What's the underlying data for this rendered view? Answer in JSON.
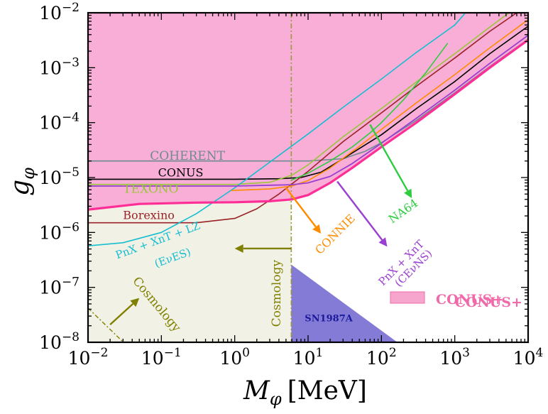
{
  "chart_data": {
    "type": "line",
    "title": "",
    "xlabel": "M",
    "xlabel_sub": "φ",
    "xlabel_unit": "[MeV]",
    "ylabel": "g",
    "ylabel_sub": "φ",
    "x_scale": "log",
    "y_scale": "log",
    "xlim": [
      0.01,
      10000
    ],
    "ylim": [
      1e-08,
      0.01
    ],
    "x_ticks": [
      {
        "value": 0.01,
        "base": "10",
        "exp": "−2"
      },
      {
        "value": 0.1,
        "base": "10",
        "exp": "−1"
      },
      {
        "value": 1,
        "base": "10",
        "exp": "0"
      },
      {
        "value": 10,
        "base": "10",
        "exp": "1"
      },
      {
        "value": 100,
        "base": "10",
        "exp": "2"
      },
      {
        "value": 1000,
        "base": "10",
        "exp": "3"
      },
      {
        "value": 10000,
        "base": "10",
        "exp": "4"
      }
    ],
    "y_ticks": [
      {
        "value": 1e-08,
        "base": "10",
        "exp": "−8"
      },
      {
        "value": 1e-07,
        "base": "10",
        "exp": "−7"
      },
      {
        "value": 1e-06,
        "base": "10",
        "exp": "−6"
      },
      {
        "value": 1e-05,
        "base": "10",
        "exp": "−5"
      },
      {
        "value": 0.0001,
        "base": "10",
        "exp": "−4"
      },
      {
        "value": 0.001,
        "base": "10",
        "exp": "−3"
      },
      {
        "value": 0.01,
        "base": "10",
        "exp": "−2"
      }
    ],
    "cosmology_boundary_mass": 5.9,
    "regions": [
      {
        "name": "CONUS+ excluded",
        "color": "#f04ca5",
        "opacity": 0.45,
        "boundary": [
          [
            0.01,
            2.6e-06
          ],
          [
            0.05,
            3.3e-06
          ],
          [
            0.3,
            3.5e-06
          ],
          [
            1,
            3.55e-06
          ],
          [
            3,
            3.7e-06
          ],
          [
            6,
            4e-06
          ],
          [
            10,
            4.8e-06
          ],
          [
            20,
            8e-06
          ],
          [
            40,
            1.5e-05
          ],
          [
            100,
            3.6e-05
          ],
          [
            300,
            0.0001
          ],
          [
            1000,
            0.00033
          ],
          [
            3000,
            0.001
          ],
          [
            10000,
            0.0032
          ]
        ]
      },
      {
        "name": "Cosmology",
        "color": "#c8c89a",
        "opacity": 0.25,
        "x_range": [
          0.01,
          5.9
        ]
      },
      {
        "name": "SN1987A",
        "color": "#5b4fc9",
        "opacity": 0.75,
        "polygon": [
          [
            5.9,
            2.6e-07
          ],
          [
            5.9,
            1e-08
          ],
          [
            165,
            1e-08
          ]
        ]
      }
    ],
    "series": [
      {
        "name": "COHERENT",
        "color": "#6e8b8f",
        "width": 1.6,
        "points": [
          [
            0.01,
            2e-05
          ],
          [
            1,
            2e-05
          ],
          [
            10,
            2e-05
          ],
          [
            30,
            2.2e-05
          ],
          [
            60,
            3e-05
          ],
          [
            100,
            4.3e-05
          ],
          [
            300,
            0.00011
          ],
          [
            1000,
            0.00035
          ],
          [
            3000,
            0.00105
          ],
          [
            10000,
            0.0033
          ]
        ]
      },
      {
        "name": "CONUS",
        "color": "#000000",
        "width": 1.6,
        "points": [
          [
            0.01,
            9.3e-06
          ],
          [
            1,
            9.3e-06
          ],
          [
            4,
            9.5e-06
          ],
          [
            8,
            1e-05
          ],
          [
            15,
            1.25e-05
          ],
          [
            30,
            2.2e-05
          ],
          [
            100,
            6e-05
          ],
          [
            300,
            0.00018
          ],
          [
            1000,
            0.00056
          ],
          [
            3000,
            0.0018
          ],
          [
            10000,
            0.0057
          ]
        ]
      },
      {
        "name": "TEXONO",
        "color": "#9bc53d",
        "width": 1.6,
        "points": [
          [
            0.01,
            7.5e-06
          ],
          [
            1,
            7.5e-06
          ],
          [
            3,
            8.2e-06
          ],
          [
            6,
            1.1e-05
          ],
          [
            10,
            1.7e-05
          ],
          [
            30,
            5.5e-05
          ],
          [
            100,
            0.00018
          ],
          [
            300,
            0.00055
          ],
          [
            1000,
            0.0018
          ],
          [
            3000,
            0.0055
          ],
          [
            5500,
            0.01
          ]
        ]
      },
      {
        "name": "Borexino",
        "color": "#9b2226",
        "width": 1.6,
        "points": [
          [
            0.01,
            1.5e-06
          ],
          [
            0.3,
            1.5e-06
          ],
          [
            1,
            1.8e-06
          ],
          [
            2,
            2.7e-06
          ],
          [
            4,
            5e-06
          ],
          [
            10,
            1.3e-05
          ],
          [
            30,
            4.5e-05
          ],
          [
            100,
            0.00015
          ],
          [
            300,
            0.00046
          ],
          [
            1000,
            0.0015
          ],
          [
            3000,
            0.0046
          ],
          [
            7000,
            0.01
          ]
        ]
      },
      {
        "name": "PnX + XnT + LZ (EνES)",
        "color": "#17becf",
        "width": 1.6,
        "points": [
          [
            0.01,
            5.7e-07
          ],
          [
            0.03,
            6.5e-07
          ],
          [
            0.1,
            1e-06
          ],
          [
            0.3,
            2.2e-06
          ],
          [
            1,
            6.5e-06
          ],
          [
            3,
            1.9e-05
          ],
          [
            10,
            6.2e-05
          ],
          [
            30,
            0.00019
          ],
          [
            100,
            0.00062
          ],
          [
            300,
            0.0019
          ],
          [
            1000,
            0.006
          ],
          [
            1400,
            0.01
          ]
        ]
      },
      {
        "name": "CONNIE",
        "color": "#ff8c00",
        "width": 1.6,
        "points": [
          [
            0.9,
            5.8e-06
          ],
          [
            3,
            6.2e-06
          ],
          [
            6,
            7e-06
          ],
          [
            10,
            8.8e-06
          ],
          [
            20,
            1.5e-05
          ],
          [
            50,
            3.7e-05
          ],
          [
            100,
            7.5e-05
          ],
          [
            300,
            0.00023
          ],
          [
            1000,
            0.00075
          ],
          [
            3000,
            0.0023
          ],
          [
            10000,
            0.0075
          ]
        ]
      },
      {
        "name": "NA64",
        "color": "#2ecc40",
        "width": 1.6,
        "points": [
          [
            6,
            9e-06
          ],
          [
            10,
            1.2e-05
          ],
          [
            20,
            2e-05
          ],
          [
            40,
            3.6e-05
          ],
          [
            70,
            6.5e-05
          ],
          [
            100,
            0.0001
          ],
          [
            200,
            0.00026
          ],
          [
            400,
            0.0008
          ],
          [
            800,
            0.0028
          ]
        ]
      },
      {
        "name": "PnX + XnT (CEνNS)",
        "color": "#9b3fd1",
        "width": 1.8,
        "points": [
          [
            0.01,
            7e-06
          ],
          [
            1,
            7e-06
          ],
          [
            6,
            7.4e-06
          ],
          [
            10,
            8e-06
          ],
          [
            20,
            1.05e-05
          ],
          [
            40,
            1.8e-05
          ],
          [
            100,
            4.2e-05
          ],
          [
            300,
            0.00012
          ],
          [
            1000,
            0.00039
          ],
          [
            3000,
            0.0012
          ],
          [
            10000,
            0.0039
          ]
        ]
      },
      {
        "name": "CONUS+",
        "color": "#ff2d96",
        "width": 3.2,
        "points": [
          [
            0.01,
            2.6e-06
          ],
          [
            0.05,
            3.3e-06
          ],
          [
            0.3,
            3.5e-06
          ],
          [
            1,
            3.55e-06
          ],
          [
            3,
            3.7e-06
          ],
          [
            6,
            4e-06
          ],
          [
            10,
            4.8e-06
          ],
          [
            20,
            8e-06
          ],
          [
            40,
            1.5e-05
          ],
          [
            100,
            3.6e-05
          ],
          [
            300,
            0.0001
          ],
          [
            1000,
            0.00033
          ],
          [
            3000,
            0.001
          ],
          [
            10000,
            0.0032
          ]
        ]
      }
    ],
    "annotations": [
      {
        "text": "COHERENT",
        "color": "#6e8b8f",
        "x": 0.07,
        "y": 2.1e-05,
        "rotate": 0,
        "size": 17
      },
      {
        "text": "CONUS",
        "color": "#000000",
        "x": 0.09,
        "y": 1.05e-05,
        "rotate": 0,
        "size": 16
      },
      {
        "text": "TEXONO",
        "color": "#9bc53d",
        "x": 0.03,
        "y": 5.3e-06,
        "rotate": 0,
        "size": 17
      },
      {
        "text": "Borexino",
        "color": "#9b2226",
        "x": 0.03,
        "y": 1.75e-06,
        "rotate": 0,
        "size": 16
      },
      {
        "text": "PnX + XnT + LZ",
        "color": "#17becf",
        "x": 0.025,
        "y": 3.3e-07,
        "rotate": -20,
        "size": 15
      },
      {
        "text": "(EνES)",
        "color": "#17becf",
        "x": 0.085,
        "y": 2.3e-07,
        "rotate": -20,
        "size": 15
      },
      {
        "text": "Cosmology",
        "color": "#808000",
        "x": 0.04,
        "y": 1.3e-07,
        "rotate": 50,
        "size": 17
      },
      {
        "text": "Cosmology",
        "color": "#808000",
        "x": 4.2,
        "y": 1.9e-08,
        "rotate": -90,
        "size": 17
      },
      {
        "text": "SN1987A",
        "color": "#1a1a9c",
        "x": 9,
        "y": 2.4e-08,
        "rotate": 0,
        "size": 13,
        "bold": true
      },
      {
        "text": "CONNIE",
        "color": "#ff8c00",
        "x": 14.5,
        "y": 3.9e-07,
        "rotate": -45,
        "size": 16
      },
      {
        "text": "NA64",
        "color": "#2ecc40",
        "x": 140,
        "y": 1.45e-06,
        "rotate": -35,
        "size": 16
      },
      {
        "text": "PnX + XnT",
        "color": "#9b3fd1",
        "x": 105,
        "y": 1.05e-07,
        "rotate": -45,
        "size": 15
      },
      {
        "text": "(CEνNS)",
        "color": "#9b3fd1",
        "x": 175,
        "y": 1e-07,
        "rotate": -45,
        "size": 15
      },
      {
        "text": "CONUS+",
        "color": "#f06aaa",
        "x": 1000,
        "y": 4.4e-08,
        "rotate": 0,
        "size": 19,
        "bold": true
      }
    ],
    "arrows": [
      {
        "name": "cosmology-left-arrow",
        "color": "#808000",
        "from": [
          5.9,
          5.1e-07
        ],
        "to": [
          1.0,
          5.1e-07
        ]
      },
      {
        "name": "cosmology-up-arrow",
        "color": "#808000",
        "from": [
          0.02,
          2.1e-08
        ],
        "to": [
          0.05,
          6.4e-08
        ]
      },
      {
        "name": "connie-arrow",
        "color": "#ff8c00",
        "from": [
          5,
          6.5e-06
        ],
        "to": [
          15,
          9.5e-07
        ]
      },
      {
        "name": "na64-arrow",
        "color": "#2ecc40",
        "from": [
          70,
          9.2e-05
        ],
        "to": [
          260,
          4.2e-06
        ]
      },
      {
        "name": "cevns-arrow",
        "color": "#9b3fd1",
        "from": [
          25,
          8.5e-06
        ],
        "to": [
          120,
          5.5e-07
        ]
      }
    ],
    "legend": [
      {
        "label": "CONUS+",
        "color": "#f06aaa",
        "position": "bottom-right"
      }
    ]
  }
}
